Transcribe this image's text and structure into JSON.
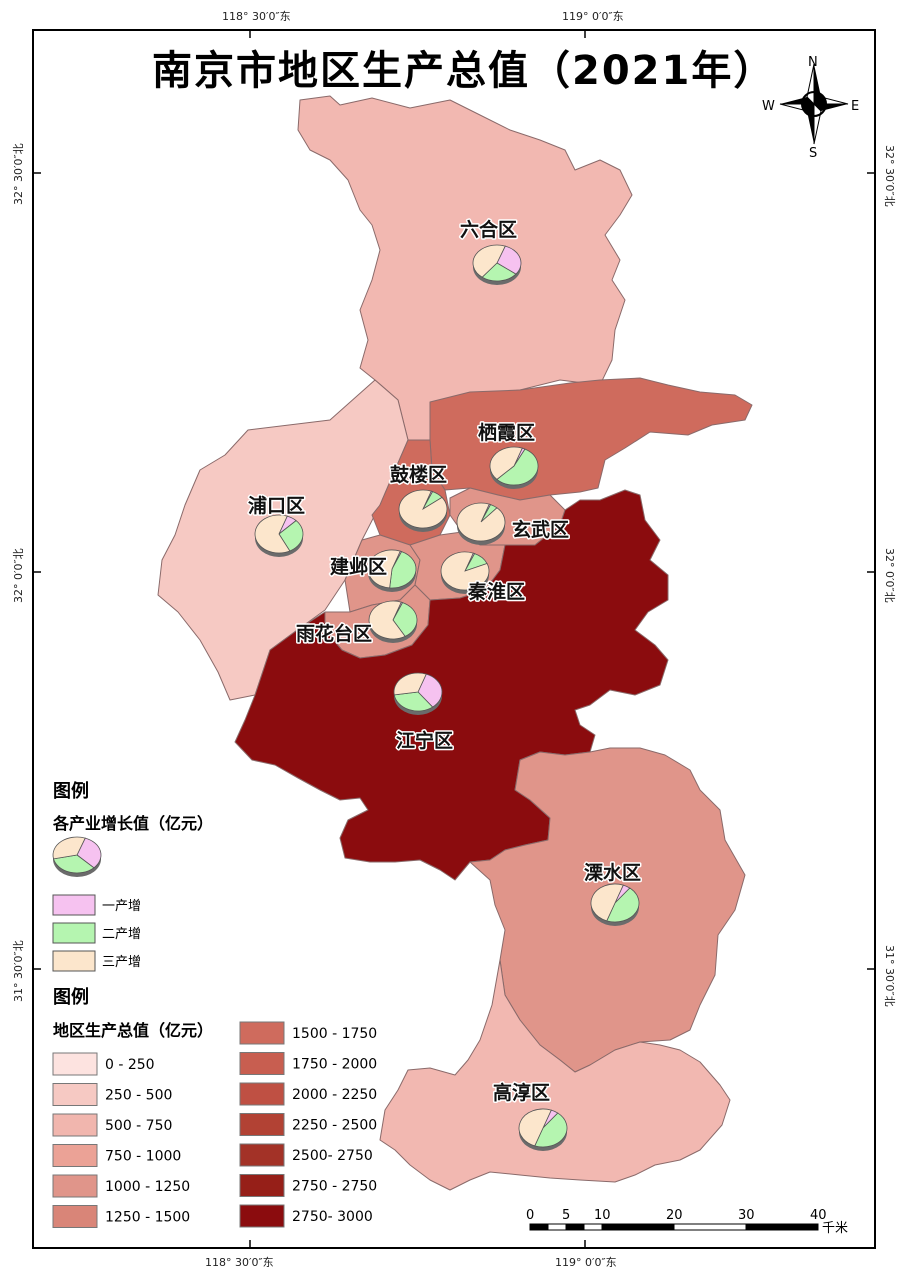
{
  "title": "南京市地区生产总值（2021年）",
  "compass": {
    "n": "N",
    "s": "S",
    "e": "E",
    "w": "W"
  },
  "coords": {
    "top_left": "118° 30′0″东",
    "top_right": "119° 0′0″东",
    "bottom_left": "118° 30′0″东",
    "bottom_right": "119° 0′0″东",
    "left_top": "32° 30′0″北",
    "left_mid": "32° 0′0″北",
    "left_bot": "31° 30′0″北",
    "right_top": "32° 30′0″北",
    "right_mid": "32° 0′0″北",
    "right_bot": "31° 30′0″北"
  },
  "colors": {
    "primary": "#f2b8b1",
    "secondary": "#b5f5b0",
    "tertiary": "#fce6cc",
    "first_industry": "#f6c2f0",
    "class_250_500": "#f6c9c3",
    "class_500_750": "#f1b6ae",
    "class_1000_1250": "#e0958a",
    "class_1500_1750": "#cf6b5d",
    "class_2750_3000": "#8b0c0e",
    "border": "#8a6a6a"
  },
  "districts": [
    {
      "name": "六合区",
      "class": "500 - 750"
    },
    {
      "name": "栖霞区",
      "class": "1500 - 1750"
    },
    {
      "name": "鼓楼区",
      "class": "1500 - 1750"
    },
    {
      "name": "浦口区",
      "class": "250 - 500"
    },
    {
      "name": "玄武区",
      "class": "1000 - 1250"
    },
    {
      "name": "建邺区",
      "class": "1000 - 1250"
    },
    {
      "name": "秦淮区",
      "class": "1000 - 1250"
    },
    {
      "name": "雨花台区",
      "class": "1000 - 1250"
    },
    {
      "name": "江宁区",
      "class": "2750- 3000"
    },
    {
      "name": "溧水区",
      "class": "1000 - 1250"
    },
    {
      "name": "高淳区",
      "class": "500 - 750"
    }
  ],
  "legend_pie": {
    "heading": "图例",
    "subtitle": "各产业增长值（亿元）",
    "items": [
      "一产增",
      "二产增",
      "三产增"
    ]
  },
  "legend_gdp": {
    "heading": "图例",
    "subtitle": "地区生产总值（亿元）",
    "classes_left": [
      "0 - 250",
      "250 - 500",
      "500 - 750",
      "750 - 1000",
      "1000 - 1250",
      "1250 - 1500"
    ],
    "classes_right": [
      "1500 - 1750",
      "1750 - 2000",
      "2000 - 2250",
      "2250 - 2500",
      "2500- 2750",
      "2750 - 2750",
      "2750- 3000"
    ],
    "colors_left": [
      "#fde3e0",
      "#f6c9c3",
      "#f1b6ae",
      "#eba296",
      "#e0958a",
      "#d98578"
    ],
    "colors_right": [
      "#cf6b5d",
      "#c85e50",
      "#bf5043",
      "#b24234",
      "#a33227",
      "#961f18",
      "#8b0c0e"
    ]
  },
  "scalebar": {
    "ticks": [
      "0",
      "5",
      "10",
      "20",
      "30",
      "40"
    ],
    "unit": "千米"
  }
}
